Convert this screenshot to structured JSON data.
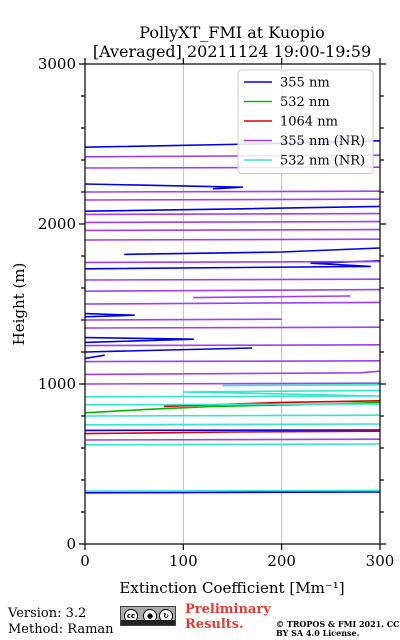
{
  "chart_data": {
    "type": "line",
    "title": "PollyXT_FMI at Kuopio",
    "subtitle": "[Averaged] 20211124 19:00-19:59",
    "xlabel": "Extinction Coefficient [Mm⁻¹]",
    "ylabel": "Height (m)",
    "xlim": [
      0,
      300
    ],
    "ylim": [
      0,
      3000
    ],
    "xticks": [
      "0",
      "100",
      "200",
      "300"
    ],
    "yticks": [
      "0",
      "1000",
      "2000",
      "3000"
    ],
    "grid": "vertical",
    "legend_position": "top-right",
    "series": [
      {
        "name": "355 nm",
        "color": "#0000ee",
        "points": [
          [
            0,
            320
          ],
          [
            300,
            325
          ],
          [
            0,
            710
          ],
          [
            300,
            712
          ],
          [
            0,
            1160
          ],
          [
            20,
            1180
          ],
          [
            170,
            1225
          ],
          [
            0,
            1200
          ],
          [
            0,
            1260
          ],
          [
            110,
            1280
          ],
          [
            0,
            1290
          ],
          [
            0,
            1420
          ],
          [
            50,
            1430
          ],
          [
            0,
            1440
          ],
          [
            0,
            1720
          ],
          [
            290,
            1735
          ],
          [
            230,
            1755
          ],
          [
            300,
            1770
          ],
          [
            40,
            1810
          ],
          [
            200,
            1825
          ],
          [
            300,
            1850
          ],
          [
            0,
            2080
          ],
          [
            160,
            2095
          ],
          [
            300,
            2110
          ],
          [
            130,
            2220
          ],
          [
            160,
            2230
          ],
          [
            0,
            2250
          ],
          [
            0,
            2480
          ],
          [
            170,
            2500
          ],
          [
            300,
            2520
          ]
        ]
      },
      {
        "name": "532 nm",
        "color": "#00bb00",
        "points": [
          [
            0,
            820
          ],
          [
            60,
            840
          ],
          [
            130,
            860
          ],
          [
            250,
            875
          ],
          [
            300,
            885
          ]
        ]
      },
      {
        "name": "1064 nm",
        "color": "#dd0000",
        "points": [
          [
            0,
            690
          ],
          [
            150,
            700
          ],
          [
            300,
            705
          ],
          [
            0,
            830
          ],
          [
            80,
            860
          ],
          [
            200,
            885
          ],
          [
            300,
            895
          ]
        ]
      },
      {
        "name": "355 nm (NR)",
        "color": "#a040f0",
        "points": [
          [
            0,
            650
          ],
          [
            300,
            655
          ],
          [
            0,
            1000
          ],
          [
            300,
            1005
          ],
          [
            0,
            1060
          ],
          [
            280,
            1070
          ],
          [
            300,
            1080
          ],
          [
            0,
            1140
          ],
          [
            300,
            1145
          ],
          [
            0,
            1240
          ],
          [
            300,
            1245
          ],
          [
            0,
            1350
          ],
          [
            300,
            1355
          ],
          [
            0,
            1400
          ],
          [
            200,
            1405
          ],
          [
            0,
            1500
          ],
          [
            300,
            1510
          ],
          [
            110,
            1540
          ],
          [
            270,
            1550
          ],
          [
            0,
            1580
          ],
          [
            300,
            1590
          ],
          [
            0,
            1650
          ],
          [
            300,
            1655
          ],
          [
            0,
            1760
          ],
          [
            300,
            1765
          ],
          [
            0,
            1900
          ],
          [
            300,
            1905
          ],
          [
            0,
            1960
          ],
          [
            300,
            1965
          ],
          [
            0,
            2010
          ],
          [
            300,
            2015
          ],
          [
            0,
            2060
          ],
          [
            300,
            2065
          ],
          [
            0,
            2150
          ],
          [
            300,
            2155
          ],
          [
            0,
            2200
          ],
          [
            300,
            2205
          ],
          [
            0,
            2350
          ],
          [
            300,
            2355
          ],
          [
            0,
            2420
          ],
          [
            300,
            2430
          ],
          [
            0,
            2540
          ],
          [
            300,
            2570
          ]
        ]
      },
      {
        "name": "532 nm (NR)",
        "color": "#33e8cc",
        "points": [
          [
            0,
            330
          ],
          [
            300,
            335
          ],
          [
            0,
            620
          ],
          [
            300,
            625
          ],
          [
            0,
            745
          ],
          [
            300,
            750
          ],
          [
            0,
            800
          ],
          [
            300,
            805
          ],
          [
            0,
            870
          ],
          [
            300,
            875
          ],
          [
            0,
            920
          ],
          [
            300,
            925
          ],
          [
            100,
            950
          ],
          [
            300,
            960
          ],
          [
            140,
            990
          ],
          [
            300,
            995
          ]
        ]
      }
    ]
  },
  "footer": {
    "version": "Version: 3.2",
    "method": "Method: Raman",
    "preliminary": "Preliminary Results.",
    "copyright": "© TROPOS & FMI 2021. CC BY SA 4.0 License.",
    "license_badge": {
      "text": "cc",
      "icons": [
        "cc-icon",
        "by-icon",
        "sa-icon"
      ]
    }
  }
}
